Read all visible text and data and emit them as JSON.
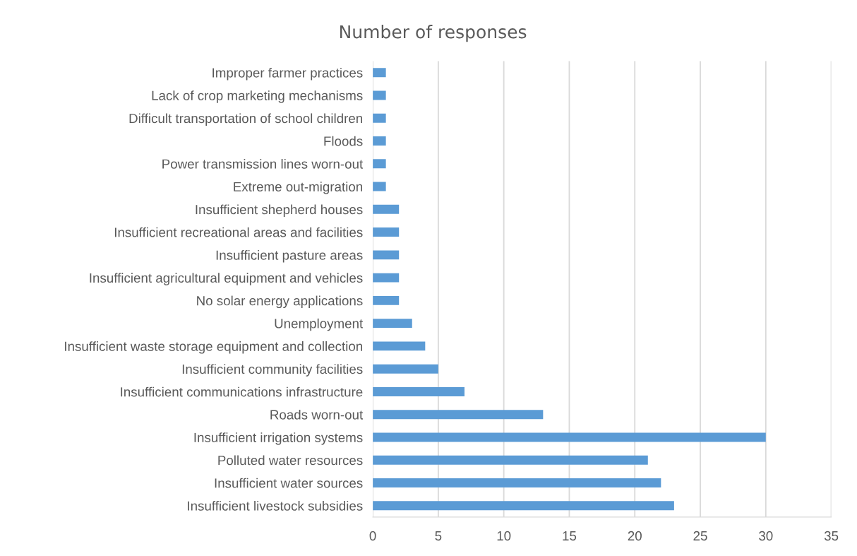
{
  "chart_data": {
    "type": "bar",
    "orientation": "horizontal",
    "title": "Number of responses",
    "categories": [
      "Improper farmer practices",
      "Lack of crop marketing mechanisms",
      "Difficult transportation of school children",
      "Floods",
      "Power transmission lines worn-out",
      "Extreme out-migration",
      "Insufficient shepherd houses",
      "Insufficient recreational areas and facilities",
      "Insufficient pasture areas",
      "Insufficient agricultural equipment and vehicles",
      "No solar energy applications",
      "Unemployment",
      "Insufficient waste storage equipment and collection",
      "Insufficient community facilities",
      "Insufficient communications infrastructure",
      "Roads worn-out",
      "Insufficient irrigation systems",
      "Polluted water resources",
      "Insufficient water sources",
      "Insufficient livestock subsidies"
    ],
    "values": [
      1,
      1,
      1,
      1,
      1,
      1,
      2,
      2,
      2,
      2,
      2,
      3,
      4,
      5,
      7,
      13,
      30,
      21,
      22,
      23
    ],
    "color": "#5b9bd5",
    "xlim": [
      0,
      35
    ],
    "xticks": [
      0,
      5,
      10,
      15,
      20,
      25,
      30,
      35
    ],
    "grid": "x"
  }
}
